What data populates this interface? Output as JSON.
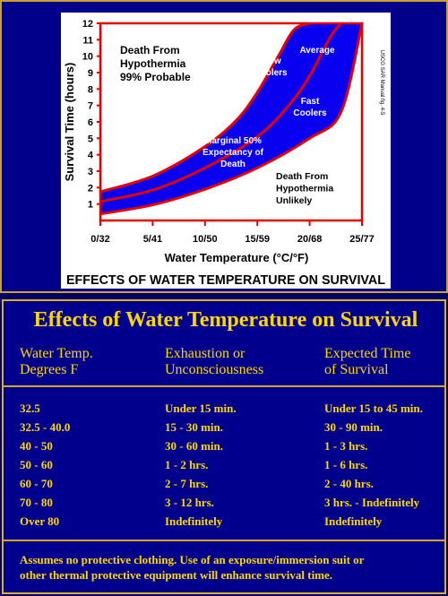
{
  "chart_data": {
    "type": "line",
    "title": "EFFECTS OF WATER TEMPERATURE ON SURVIVAL",
    "xlabel": "Water Temperature (°C/°F)",
    "ylabel": "Survival Time (hours)",
    "xlim": [
      0,
      25
    ],
    "ylim": [
      0,
      12
    ],
    "x_ticks": [
      {
        "v": 0,
        "label": "0/32"
      },
      {
        "v": 5,
        "label": "5/41"
      },
      {
        "v": 10,
        "label": "10/50"
      },
      {
        "v": 15,
        "label": "15/59"
      },
      {
        "v": 20,
        "label": "20/68"
      },
      {
        "v": 25,
        "label": "25/77"
      }
    ],
    "y_ticks": [
      1,
      2,
      3,
      4,
      5,
      6,
      7,
      8,
      9,
      10,
      11,
      12
    ],
    "source_note": "USCG SAR Manual fig. 4-5",
    "region_labels": [
      {
        "text": [
          "Death From",
          "Hypothermia",
          "99% Probable"
        ],
        "color": "#000000"
      },
      {
        "text": [
          "Slow",
          "Coolers"
        ],
        "color": "#ffffff"
      },
      {
        "text": [
          "Average"
        ],
        "color": "#ffffff"
      },
      {
        "text": [
          "Fast",
          "Coolers"
        ],
        "color": "#ffffff"
      },
      {
        "text": [
          "Marginal 50%",
          "Expectancy of",
          "Death"
        ],
        "color": "#ffffff"
      },
      {
        "text": [
          "Death From",
          "Hypothermia",
          "Unlikely"
        ],
        "color": "#000000"
      }
    ],
    "series": [
      {
        "name": "Slow Coolers",
        "x": [
          0,
          5,
          10,
          13,
          15,
          17,
          18.5,
          20
        ],
        "y": [
          1.75,
          2.7,
          4.5,
          6.1,
          7.8,
          10,
          11.6,
          12
        ]
      },
      {
        "name": "Average",
        "x": [
          0,
          5,
          10,
          15,
          18,
          20,
          22,
          23
        ],
        "y": [
          1.15,
          1.85,
          3.2,
          5.1,
          7.0,
          8.8,
          11.2,
          12
        ]
      },
      {
        "name": "Fast Coolers",
        "x": [
          0,
          5,
          10,
          15,
          20,
          23,
          25
        ],
        "y": [
          0.4,
          0.95,
          1.9,
          3.2,
          5.0,
          6.6,
          12
        ]
      }
    ],
    "colors": {
      "curve": "#e60000",
      "fill": "#0a00f0",
      "axis_text": "#000000"
    }
  },
  "table": {
    "title": "Effects of Water Temperature on Survival",
    "headers": [
      [
        "Water Temp.",
        "Degrees F"
      ],
      [
        "Exhaustion or",
        "Unconsciousness"
      ],
      [
        "Expected Time",
        "of Survival"
      ]
    ],
    "rows": [
      [
        "32.5",
        "Under 15 min.",
        "Under 15 to 45 min."
      ],
      [
        "32.5 - 40.0",
        "15 - 30 min.",
        "30 - 90 min."
      ],
      [
        "40 - 50",
        "30 - 60 min.",
        "1 - 3 hrs."
      ],
      [
        "50 - 60",
        "1 - 2 hrs.",
        "1 - 6 hrs."
      ],
      [
        "60 - 70",
        "2 - 7 hrs.",
        "2 - 40 hrs."
      ],
      [
        "70 - 80",
        "3 - 12 hrs.",
        "3 hrs. - Indefinitely"
      ],
      [
        "Over 80",
        "Indefinitely",
        "Indefinitely"
      ]
    ],
    "footnote": [
      "Assumes no protective clothing.  Use of an exposure/immersion suit or",
      "other thermal protective equipment will enhance survival time."
    ]
  }
}
